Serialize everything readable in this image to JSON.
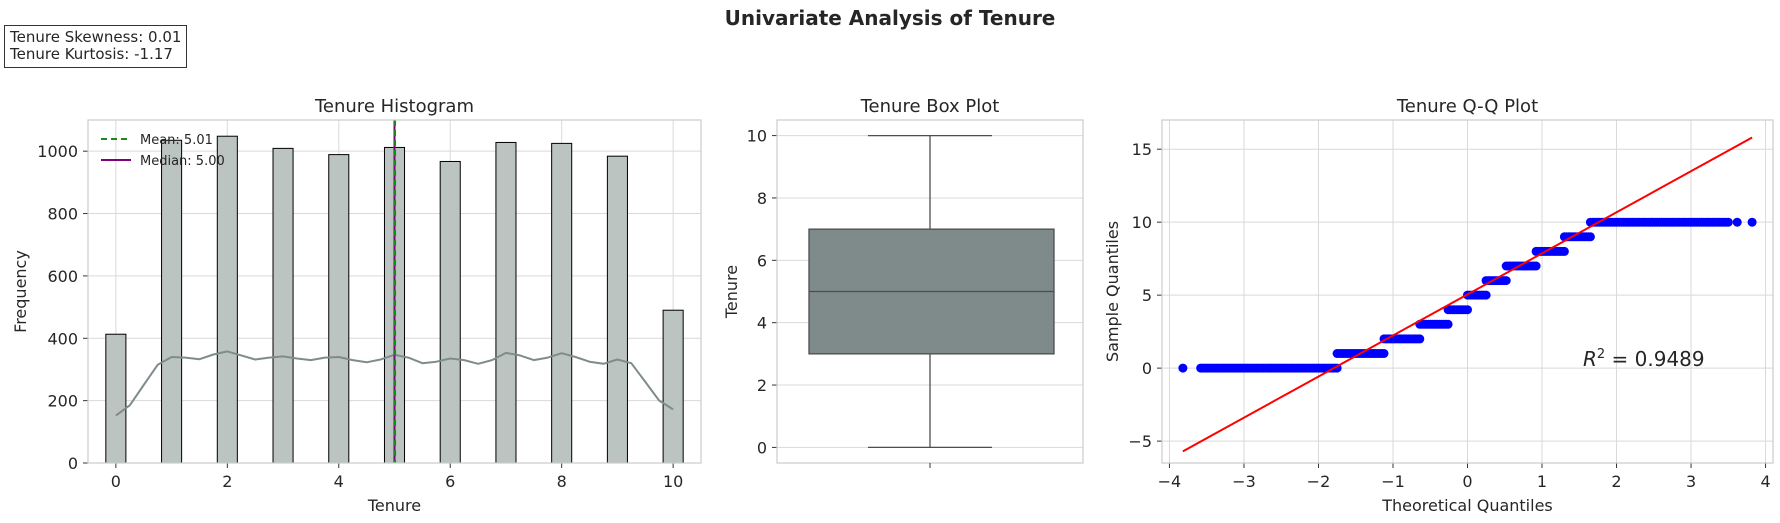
{
  "figure": {
    "title": "Univariate Analysis of Tenure",
    "stats": {
      "skewness": "Tenure Skewness: 0.01",
      "kurtosis": "Tenure Kurtosis: -1.17"
    }
  },
  "colors": {
    "hist_bar": "#bcc4c1",
    "kde_line": "#7f8c8d",
    "mean_line": "#1a8a1a",
    "median_line": "#800080",
    "box_fill": "#7f8a8a",
    "qq_points": "#0000ff",
    "qq_line": "#ff0000",
    "grid": "#d9d9d9",
    "frame": "#cccccc"
  },
  "chart_data": [
    {
      "type": "bar",
      "title": "Tenure Histogram",
      "xlabel": "Tenure",
      "ylabel": "Frequency",
      "xlim": [
        -0.5,
        10.5
      ],
      "ylim": [
        0,
        1100
      ],
      "x_ticks": [
        0,
        2,
        4,
        6,
        8,
        10
      ],
      "y_ticks": [
        0,
        200,
        400,
        600,
        800,
        1000
      ],
      "grid": true,
      "bins": [
        {
          "x": 0,
          "count": 413
        },
        {
          "x": 1,
          "count": 1035
        },
        {
          "x": 2,
          "count": 1048
        },
        {
          "x": 3,
          "count": 1009
        },
        {
          "x": 4,
          "count": 989
        },
        {
          "x": 5,
          "count": 1012
        },
        {
          "x": 6,
          "count": 967
        },
        {
          "x": 7,
          "count": 1028
        },
        {
          "x": 8,
          "count": 1025
        },
        {
          "x": 9,
          "count": 984
        },
        {
          "x": 10,
          "count": 490
        }
      ],
      "kde": {
        "x": [
          0,
          0.25,
          0.5,
          0.75,
          1,
          1.25,
          1.5,
          1.75,
          2,
          2.25,
          2.5,
          2.75,
          3,
          3.25,
          3.5,
          3.75,
          4,
          4.25,
          4.5,
          4.75,
          5,
          5.25,
          5.5,
          5.75,
          6,
          6.25,
          6.5,
          6.75,
          7,
          7.25,
          7.5,
          7.75,
          8,
          8.25,
          8.5,
          8.75,
          9,
          9.25,
          9.5,
          9.75,
          10
        ],
        "y": [
          152,
          185,
          250,
          315,
          340,
          338,
          333,
          348,
          358,
          345,
          332,
          338,
          342,
          335,
          330,
          338,
          340,
          330,
          323,
          332,
          347,
          338,
          320,
          325,
          335,
          330,
          318,
          330,
          353,
          345,
          330,
          338,
          352,
          340,
          325,
          318,
          332,
          320,
          260,
          200,
          172
        ]
      },
      "mean": 5.01,
      "median": 5.0,
      "legend": {
        "placement": "upper left",
        "mean_label": "Mean: 5.01",
        "median_label": "Median: 5.00"
      }
    },
    {
      "type": "box",
      "title": "Tenure Box Plot",
      "ylabel": "Tenure",
      "ylim": [
        -0.5,
        10.5
      ],
      "y_ticks": [
        0,
        2,
        4,
        6,
        8,
        10
      ],
      "grid": true,
      "min": 0,
      "q1": 3,
      "median": 5,
      "q3": 7,
      "max": 10
    },
    {
      "type": "scatter",
      "title": "Tenure Q-Q Plot",
      "xlabel": "Theoretical Quantiles",
      "ylabel": "Sample Quantiles",
      "xlim": [
        -4.1,
        4.1
      ],
      "ylim": [
        -6.5,
        17
      ],
      "x_ticks": [
        -4,
        -3,
        -2,
        -1,
        0,
        1,
        2,
        3,
        4
      ],
      "y_ticks": [
        -5,
        0,
        5,
        10,
        15
      ],
      "grid": true,
      "point_runs": [
        {
          "y": 0,
          "x_from": -3.55,
          "x_to": -1.75,
          "outliers": [
            -3.82,
            -3.58
          ]
        },
        {
          "y": 1,
          "x_from": -1.75,
          "x_to": -1.12,
          "outliers": []
        },
        {
          "y": 2,
          "x_from": -1.12,
          "x_to": -0.64,
          "outliers": []
        },
        {
          "y": 3,
          "x_from": -0.64,
          "x_to": -0.26,
          "outliers": []
        },
        {
          "y": 4,
          "x_from": -0.26,
          "x_to": 0.0,
          "outliers": []
        },
        {
          "y": 5,
          "x_from": 0.0,
          "x_to": 0.25,
          "outliers": []
        },
        {
          "y": 6,
          "x_from": 0.25,
          "x_to": 0.52,
          "outliers": []
        },
        {
          "y": 7,
          "x_from": 0.52,
          "x_to": 0.92,
          "outliers": []
        },
        {
          "y": 8,
          "x_from": 0.92,
          "x_to": 1.3,
          "outliers": []
        },
        {
          "y": 9,
          "x_from": 1.3,
          "x_to": 1.65,
          "outliers": []
        },
        {
          "y": 10,
          "x_from": 1.65,
          "x_to": 3.5,
          "outliers": [
            3.62,
            3.82
          ]
        }
      ],
      "fit_line": {
        "x": [
          -3.82,
          3.82
        ],
        "y": [
          -5.7,
          15.8
        ]
      },
      "annotation": {
        "r_label": "R",
        "r_sup": "2",
        "r_value": " = 0.9489",
        "x": 1.55,
        "y": 0
      }
    }
  ]
}
